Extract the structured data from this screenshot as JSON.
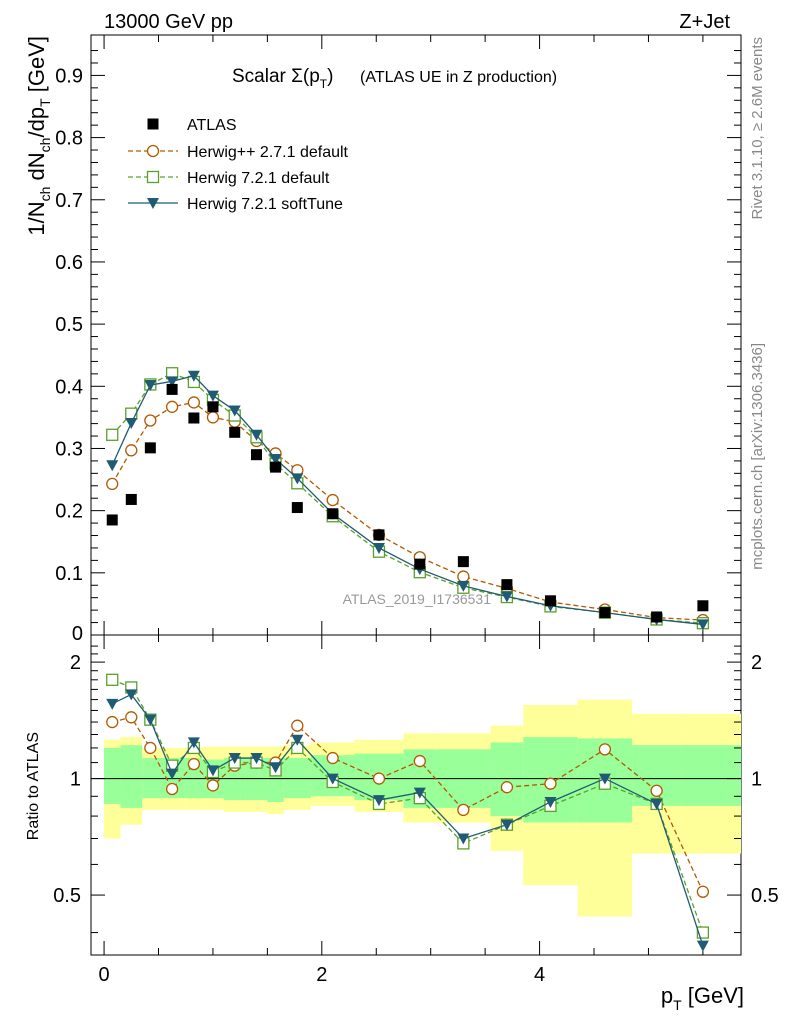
{
  "header": {
    "left": "13000 GeV pp",
    "right": "Z+Jet"
  },
  "title": {
    "main": "Scalar Σ(p",
    "sub": "T",
    "close": ")",
    "detail": "(ATLAS UE in Z production)"
  },
  "watermark": "ATLAS_2019_I1736531",
  "side": {
    "rivet": "Rivet 3.1.10, ≥ 2.6M events",
    "mcplots": "mcplots.cern.ch [arXiv:1306.3436]"
  },
  "axes": {
    "ylabel_top": {
      "p1": "1/N",
      "s1": "ch",
      "p2": " dN",
      "s2": "ch",
      "p3": "/dp",
      "s3": "T",
      "p4": " [GeV]"
    },
    "ylabel_ratio": "Ratio to ATLAS",
    "xlabel": {
      "p1": "p",
      "s1": "T",
      "p2": " [GeV]"
    }
  },
  "colors": {
    "atlas": "#000000",
    "herwigpp": "#b35900",
    "herwig72": "#5aa02c",
    "softtune": "#1f5c73",
    "band_inner": "#99ff99",
    "band_outer": "#ffff99"
  },
  "chart_data": [
    {
      "type": "scatter",
      "title": "Scalar Σ(pT) (ATLAS UE in Z production)",
      "xlabel": "pT [GeV]",
      "ylabel": "1/Nch dNch/dpT [GeV]",
      "xlim": [
        -0.12,
        5.85
      ],
      "ylim": [
        0,
        0.965
      ],
      "x_ticks": [
        0,
        2,
        4
      ],
      "y_ticks": [
        0.1,
        0.2,
        0.3,
        0.4,
        0.5,
        0.6,
        0.7,
        0.8,
        0.9
      ],
      "y_tick_labels": [
        "0.1",
        "0.2",
        "0.3",
        "0.4",
        "0.5",
        "0.6",
        "0.7",
        "0.8",
        "0.9"
      ],
      "legend_position": "top-left",
      "x": [
        0.075,
        0.25,
        0.425,
        0.625,
        0.825,
        1.0,
        1.2,
        1.4,
        1.575,
        1.775,
        2.1,
        2.525,
        2.9,
        3.3,
        3.7,
        4.1,
        4.6,
        5.075,
        5.5
      ],
      "series": [
        {
          "name": "ATLAS",
          "marker": "square-filled",
          "values": [
            0.185,
            0.218,
            0.301,
            0.395,
            0.349,
            0.367,
            0.326,
            0.29,
            0.27,
            0.205,
            0.195,
            0.161,
            0.114,
            0.118,
            0.081,
            0.055,
            0.036,
            0.029,
            0.047
          ]
        },
        {
          "name": "Herwig++ 2.7.1 default",
          "marker": "circle-open",
          "values": [
            0.243,
            0.297,
            0.345,
            0.367,
            0.374,
            0.35,
            0.343,
            0.312,
            0.292,
            0.265,
            0.217,
            0.161,
            0.125,
            0.094,
            0.075,
            0.053,
            0.041,
            0.028,
            0.024
          ]
        },
        {
          "name": "Herwig 7.2.1 default",
          "marker": "square-open",
          "values": [
            0.322,
            0.356,
            0.403,
            0.421,
            0.407,
            0.378,
            0.353,
            0.318,
            0.275,
            0.244,
            0.191,
            0.134,
            0.101,
            0.076,
            0.061,
            0.046,
            0.036,
            0.025,
            0.019
          ]
        },
        {
          "name": "Herwig 7.2.1 softTune",
          "marker": "triangle-down-filled",
          "values": [
            0.273,
            0.341,
            0.402,
            0.408,
            0.417,
            0.385,
            0.361,
            0.322,
            0.283,
            0.252,
            0.195,
            0.14,
            0.106,
            0.079,
            0.062,
            0.047,
            0.036,
            0.025,
            0.017
          ]
        }
      ]
    },
    {
      "type": "line",
      "ylabel": "Ratio to ATLAS",
      "xlabel": "pT [GeV]",
      "xlim": [
        -0.12,
        5.85
      ],
      "ylim": [
        0.35,
        2.35
      ],
      "log_y": true,
      "y_ticks": [
        0.5,
        1,
        2
      ],
      "y_tick_labels": [
        "0.5",
        "1",
        "2"
      ],
      "x_ticks": [
        0,
        2,
        4
      ],
      "x_tick_labels": [
        "0",
        "2",
        "4"
      ],
      "bin_edges": [
        0.0,
        0.15,
        0.35,
        0.5,
        0.75,
        0.9,
        1.1,
        1.3,
        1.5,
        1.65,
        1.9,
        2.3,
        2.75,
        3.05,
        3.55,
        3.85,
        4.35,
        4.85,
        5.3,
        5.85
      ],
      "band_inner": {
        "lo": [
          0.86,
          0.84,
          0.89,
          0.89,
          0.89,
          0.89,
          0.88,
          0.88,
          0.87,
          0.89,
          0.9,
          0.88,
          0.84,
          0.84,
          0.8,
          0.77,
          0.77,
          0.85,
          0.85
        ],
        "hi": [
          1.2,
          1.22,
          1.13,
          1.13,
          1.13,
          1.12,
          1.13,
          1.13,
          1.13,
          1.13,
          1.15,
          1.16,
          1.19,
          1.19,
          1.24,
          1.28,
          1.27,
          1.22,
          1.22
        ]
      },
      "band_outer": {
        "lo": [
          0.7,
          0.76,
          0.83,
          0.83,
          0.83,
          0.83,
          0.82,
          0.82,
          0.81,
          0.83,
          0.85,
          0.82,
          0.77,
          0.77,
          0.65,
          0.53,
          0.44,
          0.64,
          0.64
        ],
        "hi": [
          1.26,
          1.28,
          1.2,
          1.2,
          1.2,
          1.21,
          1.21,
          1.21,
          1.21,
          1.22,
          1.24,
          1.26,
          1.31,
          1.31,
          1.37,
          1.55,
          1.6,
          1.47,
          1.47
        ]
      },
      "x": [
        0.075,
        0.25,
        0.425,
        0.625,
        0.825,
        1.0,
        1.2,
        1.4,
        1.575,
        1.775,
        2.1,
        2.525,
        2.9,
        3.3,
        3.7,
        4.1,
        4.6,
        5.075,
        5.5
      ],
      "series": [
        {
          "name": "Herwig++ 2.7.1 default",
          "values": [
            1.4,
            1.44,
            1.2,
            0.94,
            1.09,
            0.96,
            1.08,
            1.1,
            1.1,
            1.37,
            1.13,
            1.0,
            1.11,
            0.83,
            0.95,
            0.97,
            1.19,
            0.93,
            0.51
          ]
        },
        {
          "name": "Herwig 7.2.1 default",
          "values": [
            1.8,
            1.72,
            1.42,
            1.08,
            1.2,
            1.04,
            1.1,
            1.1,
            1.05,
            1.2,
            0.98,
            0.86,
            0.89,
            0.68,
            0.76,
            0.85,
            0.97,
            0.86,
            0.4
          ]
        },
        {
          "name": "Herwig 7.2.1 softTune",
          "values": [
            1.56,
            1.65,
            1.42,
            1.03,
            1.24,
            1.05,
            1.13,
            1.13,
            1.07,
            1.26,
            1.0,
            0.88,
            0.92,
            0.7,
            0.76,
            0.87,
            1.0,
            0.86,
            0.37
          ]
        }
      ]
    }
  ]
}
